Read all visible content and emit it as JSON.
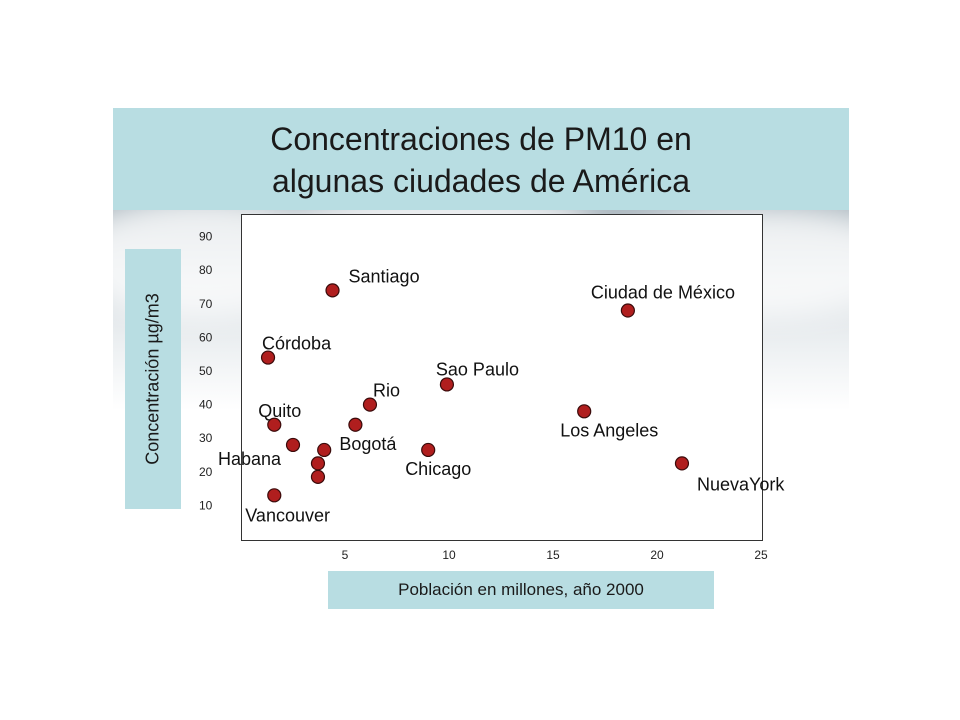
{
  "slide": {
    "title_lines": [
      "Concentraciones de PM10 en",
      "algunas ciudades de América"
    ]
  },
  "chart_data": {
    "type": "scatter",
    "title": "Concentraciones de PM10 en algunas ciudades de América",
    "xlabel": "Población en millones, año 2000",
    "ylabel": "Concentración µg/m3",
    "xlim": [
      0,
      25
    ],
    "ylim": [
      0,
      100
    ],
    "x_ticks": [
      5,
      10,
      15,
      20,
      25
    ],
    "y_ticks": [
      10,
      20,
      30,
      40,
      50,
      60,
      70,
      80,
      90
    ],
    "grid": false,
    "colors": {
      "point_fill": "#b01e1e",
      "point_stroke": "#3a0b0b",
      "band": "#b8dde2"
    },
    "points": [
      {
        "label": "Santiago",
        "x": 4.4,
        "y": 74
      },
      {
        "label": "Ciudad de México",
        "x": 18.6,
        "y": 68
      },
      {
        "label": "Córdoba",
        "x": 1.3,
        "y": 54
      },
      {
        "label": "Sao Paulo",
        "x": 9.9,
        "y": 46
      },
      {
        "label": "Rio",
        "x": 6.2,
        "y": 40
      },
      {
        "label": "Los Angeles",
        "x": 16.5,
        "y": 38
      },
      {
        "label": "Quito",
        "x": 1.6,
        "y": 34
      },
      {
        "label": "Bogotá",
        "x": 5.5,
        "y": 34
      },
      {
        "label": "Habana",
        "x": 2.5,
        "y": 28
      },
      {
        "label": "",
        "x": 4.0,
        "y": 26.5
      },
      {
        "label": "Chicago",
        "x": 9.0,
        "y": 26.5
      },
      {
        "label": "",
        "x": 3.7,
        "y": 22.5
      },
      {
        "label": "NuevaYork",
        "x": 21.2,
        "y": 22.5
      },
      {
        "label": "",
        "x": 3.7,
        "y": 18.5
      },
      {
        "label": "Vancouver",
        "x": 1.6,
        "y": 13
      }
    ]
  }
}
